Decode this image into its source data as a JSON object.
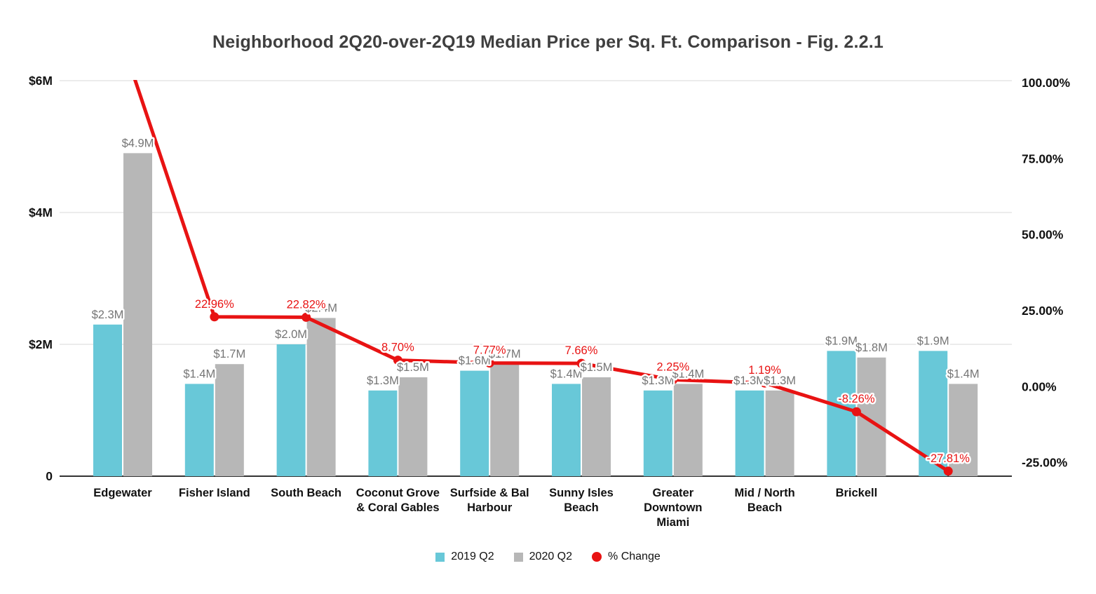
{
  "chart_data": {
    "type": "combo-bar-line",
    "title": "Neighborhood 2Q20-over-2Q19 Median Price per Sq. Ft. Comparison - Fig. 2.2.1",
    "categories": [
      "Edgewater",
      "Fisher Island",
      "South Beach",
      "Coconut Grove & Coral Gables",
      "Surfside & Bal Harbour",
      "Sunny Isles Beach",
      "Greater Downtown Miami",
      "Mid / North Beach",
      "Brickell",
      ""
    ],
    "category_lines": [
      [
        "Edgewater"
      ],
      [
        "Fisher Island"
      ],
      [
        "South Beach"
      ],
      [
        "Coconut Grove",
        "& Coral Gables"
      ],
      [
        "Surfside & Bal",
        "Harbour"
      ],
      [
        "Sunny Isles",
        "Beach"
      ],
      [
        "Greater",
        "Downtown",
        "Miami"
      ],
      [
        "Mid / North",
        "Beach"
      ],
      [
        "Brickell"
      ],
      []
    ],
    "bar_series": [
      {
        "name": "2019 Q2",
        "color": "#68c8d8",
        "values_musd": [
          2.3,
          1.4,
          2.0,
          1.3,
          1.6,
          1.4,
          1.3,
          1.3,
          1.9,
          1.9
        ],
        "labels": [
          "$2.3M",
          "$1.4M",
          "$2.0M",
          "$1.3M",
          "$1.6M",
          "$1.4M",
          "$1.3M",
          "$1.3M",
          "$1.9M",
          "$1.9M"
        ]
      },
      {
        "name": "2020 Q2",
        "color": "#b7b7b7",
        "values_musd": [
          4.9,
          1.7,
          2.4,
          1.5,
          1.7,
          1.5,
          1.4,
          1.3,
          1.8,
          1.4
        ],
        "labels": [
          "$4.9M",
          "$1.7M",
          "$2.4M",
          "$1.5M",
          "$1.7M",
          "$1.5M",
          "$1.4M",
          "$1.3M",
          "$1.8M",
          "$1.4M"
        ]
      }
    ],
    "line_series": {
      "name": "% Change",
      "color": "#e81313",
      "values_pct": [
        113.04,
        22.96,
        22.82,
        8.7,
        7.77,
        7.66,
        2.25,
        1.19,
        -8.26,
        -27.81
      ],
      "labels": [
        null,
        "22.96%",
        "22.82%",
        "8.70%",
        "7.77%",
        "7.66%",
        "2.25%",
        "1.19%",
        "-8.26%",
        "-27.81%"
      ]
    },
    "left_axis": {
      "range_musd": [
        0,
        6
      ],
      "ticks": [
        {
          "label": "0",
          "value": 0
        },
        {
          "label": "$2M",
          "value": 2
        },
        {
          "label": "$4M",
          "value": 4
        },
        {
          "label": "$6M",
          "value": 6
        }
      ]
    },
    "right_axis": {
      "range_pct": [
        -25,
        100
      ],
      "ticks": [
        {
          "label": "-25.00%",
          "value": -25
        },
        {
          "label": "0.00%",
          "value": 0
        },
        {
          "label": "25.00%",
          "value": 25
        },
        {
          "label": "50.00%",
          "value": 50
        },
        {
          "label": "75.00%",
          "value": 75
        },
        {
          "label": "100.00%",
          "value": 100
        }
      ]
    },
    "legend_position": "bottom",
    "style": {
      "gridline": "#d9d9d9",
      "axis_line": "#333333",
      "bar_label": "#757575",
      "tick_label": "#111111",
      "title_color": "#3f3f3f",
      "background": "#ffffff"
    }
  }
}
